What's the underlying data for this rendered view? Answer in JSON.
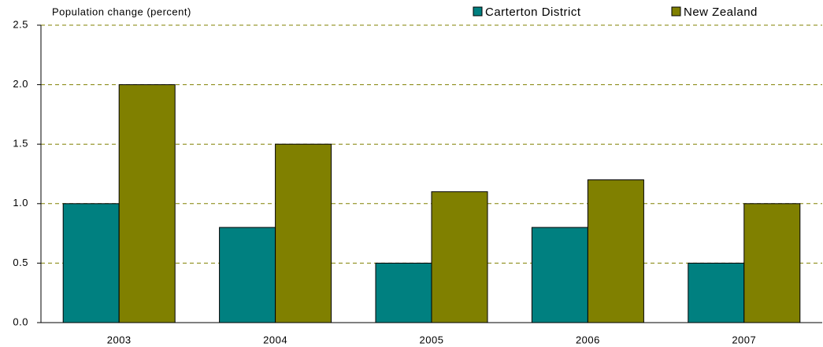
{
  "chart_data": {
    "type": "bar",
    "y_label": "Population change (percent)",
    "categories": [
      "2003",
      "2004",
      "2005",
      "2006",
      "2007"
    ],
    "series": [
      {
        "name": "Carterton District",
        "color": "#008080",
        "values": [
          1.0,
          0.8,
          0.5,
          0.8,
          0.5
        ]
      },
      {
        "name": "New Zealand",
        "color": "#808000",
        "values": [
          2.0,
          1.5,
          1.1,
          1.2,
          1.0
        ]
      }
    ],
    "ylim": [
      0,
      2.5
    ],
    "yticks": [
      {
        "value": 0,
        "label": "0.0"
      },
      0.5,
      {
        "value": 1,
        "label": "1.0"
      },
      1.5,
      {
        "value": 2,
        "label": "2.0"
      },
      2.5
    ],
    "grid": true
  }
}
